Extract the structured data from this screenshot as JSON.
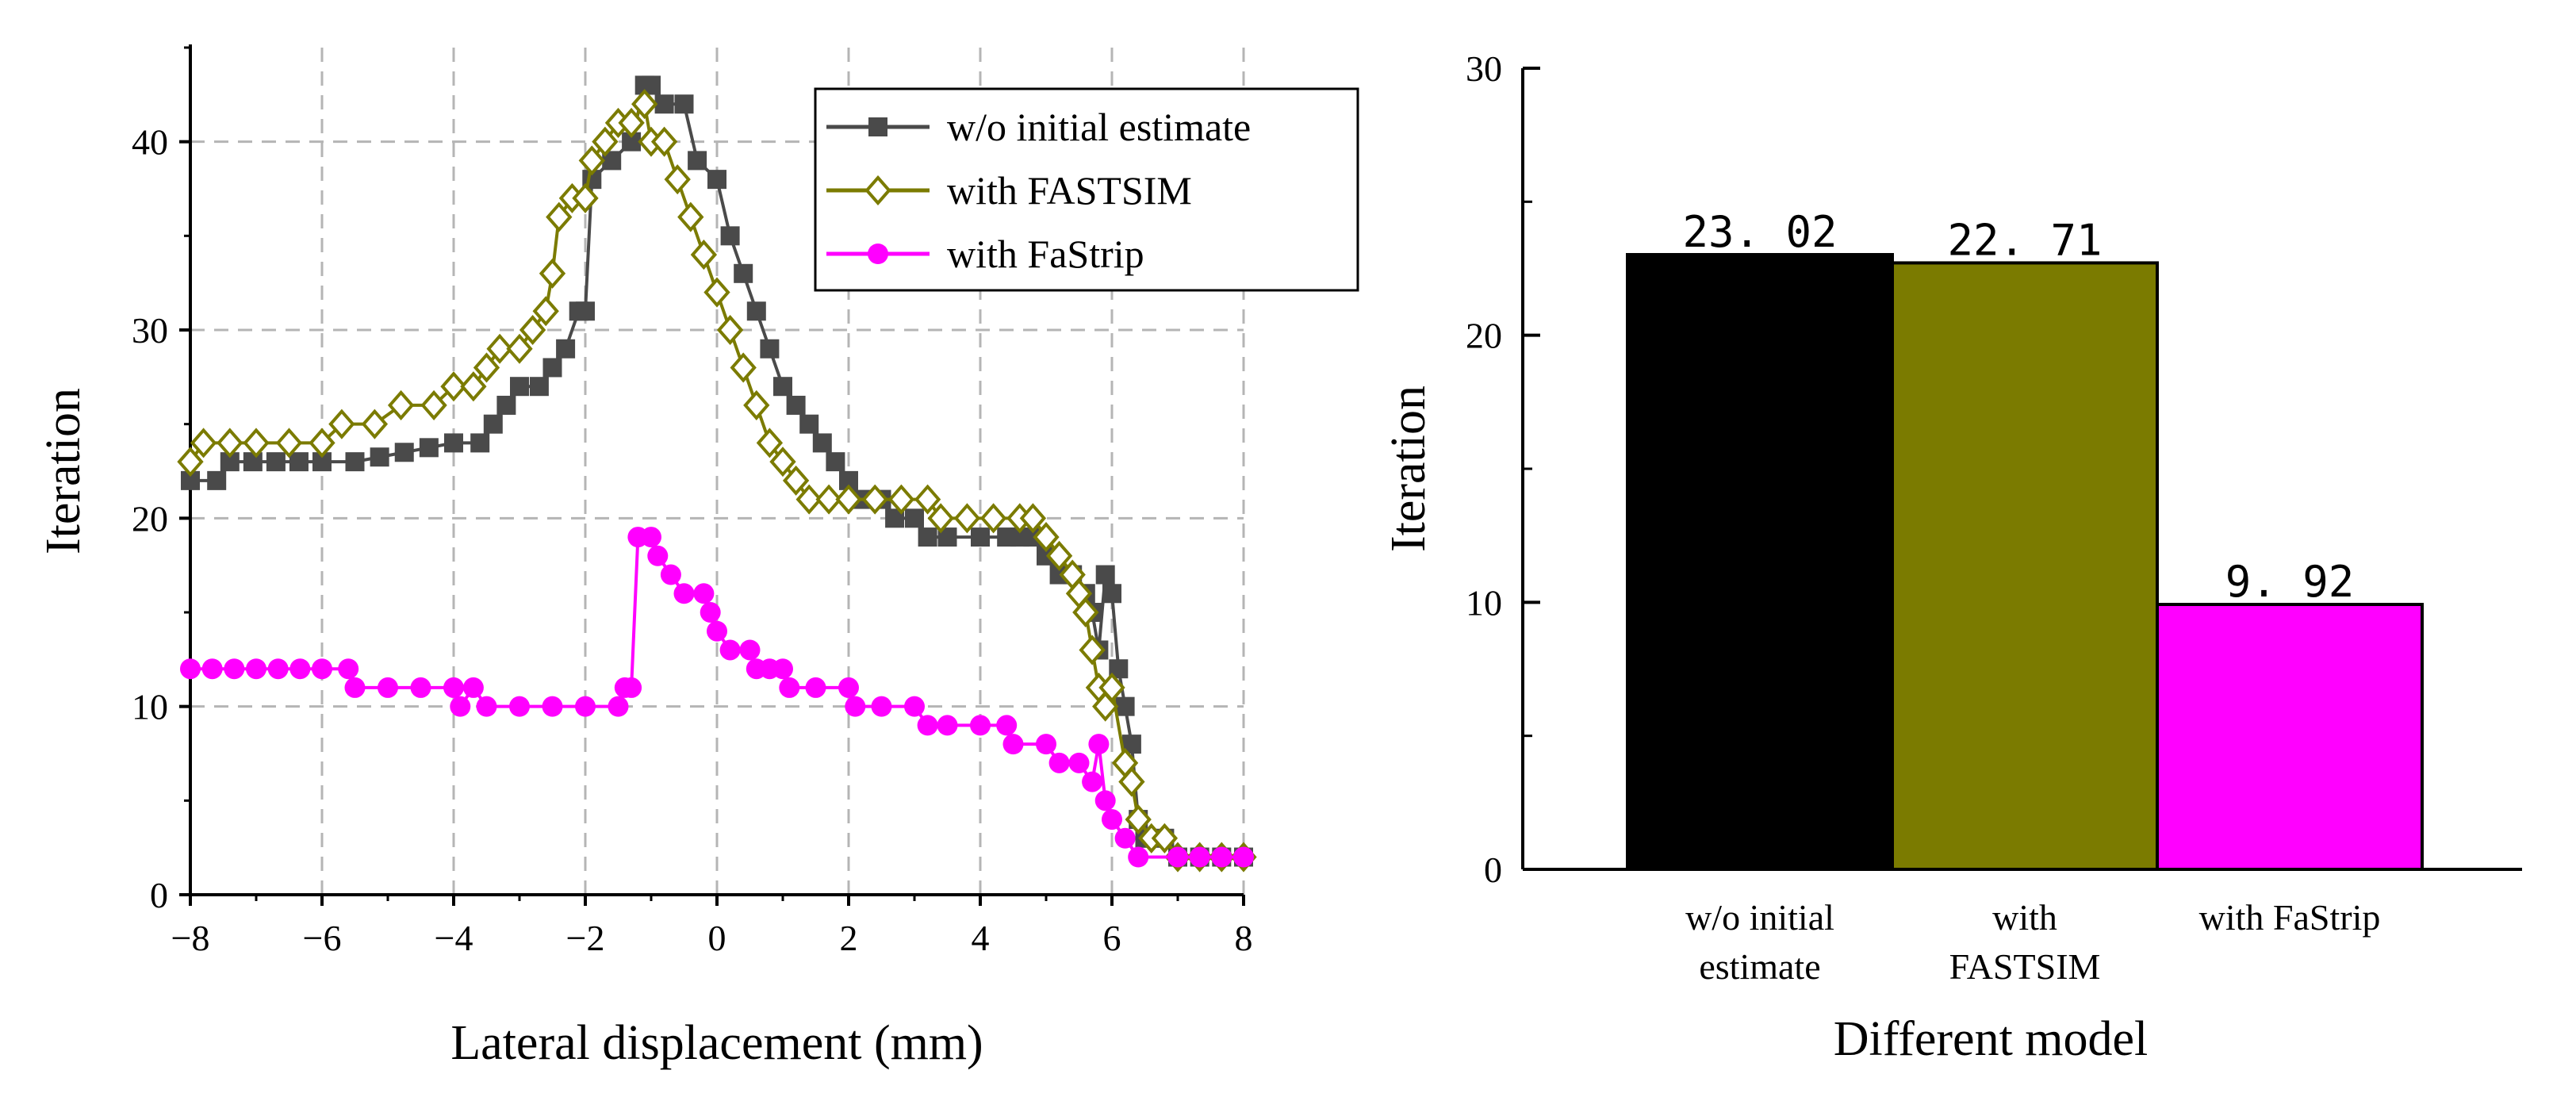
{
  "chart_data": [
    {
      "type": "line",
      "xlabel": "Lateral displacement (mm)",
      "ylabel": "Iteration",
      "xlim": [
        -8,
        8
      ],
      "ylim": [
        0,
        45
      ],
      "xticks": [
        "−8",
        "−6",
        "−4",
        "−2",
        "0",
        "2",
        "4",
        "6",
        "8"
      ],
      "yticks": [
        "0",
        "10",
        "20",
        "30",
        "40"
      ],
      "grid": true,
      "legend_position": "top-right",
      "series": [
        {
          "name": "w/o initial estimate",
          "color": "#4a4a4a",
          "marker": "square",
          "points": [
            [
              -8,
              22
            ],
            [
              -7.6,
              22
            ],
            [
              -7.4,
              23
            ],
            [
              -6,
              23
            ],
            [
              -5.5,
              23
            ],
            [
              -4,
              24
            ],
            [
              -3.6,
              24
            ],
            [
              -3.4,
              25
            ],
            [
              -3.2,
              26
            ],
            [
              -3,
              27
            ],
            [
              -2.7,
              27
            ],
            [
              -2.5,
              28
            ],
            [
              -2.3,
              29
            ],
            [
              -2.1,
              31
            ],
            [
              -2,
              31
            ],
            [
              -1.9,
              38
            ],
            [
              -1.6,
              39
            ],
            [
              -1.3,
              40
            ],
            [
              -1.1,
              43
            ],
            [
              -1,
              43
            ],
            [
              -0.8,
              42
            ],
            [
              -0.5,
              42
            ],
            [
              -0.3,
              39
            ],
            [
              0,
              38
            ],
            [
              0.2,
              35
            ],
            [
              0.4,
              33
            ],
            [
              0.6,
              31
            ],
            [
              0.8,
              29
            ],
            [
              1,
              27
            ],
            [
              1.2,
              26
            ],
            [
              1.4,
              25
            ],
            [
              1.6,
              24
            ],
            [
              1.8,
              23
            ],
            [
              2,
              22
            ],
            [
              2.2,
              21
            ],
            [
              2.5,
              21
            ],
            [
              2.7,
              20
            ],
            [
              3,
              20
            ],
            [
              3.2,
              19
            ],
            [
              3.5,
              19
            ],
            [
              4,
              19
            ],
            [
              4.4,
              19
            ],
            [
              4.6,
              19
            ],
            [
              4.8,
              19
            ],
            [
              5,
              18
            ],
            [
              5.2,
              17
            ],
            [
              5.4,
              17
            ],
            [
              5.6,
              16
            ],
            [
              5.7,
              15
            ],
            [
              5.8,
              13
            ],
            [
              5.9,
              17
            ],
            [
              6,
              16
            ],
            [
              6.1,
              12
            ],
            [
              6.2,
              10
            ],
            [
              6.3,
              8
            ],
            [
              6.4,
              4
            ],
            [
              6.5,
              3
            ],
            [
              6.8,
              3
            ],
            [
              7,
              2
            ],
            [
              8,
              2
            ]
          ]
        },
        {
          "name": "with FASTSIM",
          "color": "#7b7b00",
          "marker": "diamond-open",
          "points": [
            [
              -8,
              23
            ],
            [
              -7.8,
              24
            ],
            [
              -7,
              24
            ],
            [
              -6.5,
              24
            ],
            [
              -6,
              24
            ],
            [
              -5.7,
              25
            ],
            [
              -5.2,
              25
            ],
            [
              -4.8,
              26
            ],
            [
              -4.3,
              26
            ],
            [
              -4,
              27
            ],
            [
              -3.7,
              27
            ],
            [
              -3.5,
              28
            ],
            [
              -3.3,
              29
            ],
            [
              -3,
              29
            ],
            [
              -2.8,
              30
            ],
            [
              -2.6,
              31
            ],
            [
              -2.5,
              33
            ],
            [
              -2.4,
              36
            ],
            [
              -2.2,
              37
            ],
            [
              -2,
              37
            ],
            [
              -1.9,
              39
            ],
            [
              -1.7,
              40
            ],
            [
              -1.5,
              41
            ],
            [
              -1.3,
              41
            ],
            [
              -1.1,
              42
            ],
            [
              -1,
              40
            ],
            [
              -0.8,
              40
            ],
            [
              -0.6,
              38
            ],
            [
              -0.4,
              36
            ],
            [
              -0.2,
              34
            ],
            [
              0,
              32
            ],
            [
              0.2,
              30
            ],
            [
              0.4,
              28
            ],
            [
              0.6,
              26
            ],
            [
              0.8,
              24
            ],
            [
              1,
              23
            ],
            [
              1.2,
              22
            ],
            [
              1.4,
              21
            ],
            [
              1.7,
              21
            ],
            [
              2,
              21
            ],
            [
              2.4,
              21
            ],
            [
              2.8,
              21
            ],
            [
              3.2,
              21
            ],
            [
              3.4,
              20
            ],
            [
              3.8,
              20
            ],
            [
              4.2,
              20
            ],
            [
              4.6,
              20
            ],
            [
              4.8,
              20
            ],
            [
              5,
              19
            ],
            [
              5.2,
              18
            ],
            [
              5.4,
              17
            ],
            [
              5.5,
              16
            ],
            [
              5.6,
              15
            ],
            [
              5.7,
              13
            ],
            [
              5.8,
              11
            ],
            [
              5.9,
              10
            ],
            [
              6,
              11
            ],
            [
              6.2,
              7
            ],
            [
              6.3,
              6
            ],
            [
              6.4,
              4
            ],
            [
              6.6,
              3
            ],
            [
              6.8,
              3
            ],
            [
              7,
              2
            ],
            [
              8,
              2
            ]
          ]
        },
        {
          "name": "with FaStrip",
          "color": "#ff00ff",
          "marker": "circle",
          "points": [
            [
              -8,
              12
            ],
            [
              -7,
              12
            ],
            [
              -6,
              12
            ],
            [
              -5.6,
              12
            ],
            [
              -5.5,
              11
            ],
            [
              -5,
              11
            ],
            [
              -4.5,
              11
            ],
            [
              -4,
              11
            ],
            [
              -3.9,
              10
            ],
            [
              -3.7,
              11
            ],
            [
              -3.5,
              10
            ],
            [
              -3,
              10
            ],
            [
              -2.5,
              10
            ],
            [
              -2,
              10
            ],
            [
              -1.5,
              10
            ],
            [
              -1.4,
              11
            ],
            [
              -1.3,
              11
            ],
            [
              -1.2,
              19
            ],
            [
              -1,
              19
            ],
            [
              -0.9,
              18
            ],
            [
              -0.7,
              17
            ],
            [
              -0.5,
              16
            ],
            [
              -0.2,
              16
            ],
            [
              -0.1,
              15
            ],
            [
              0,
              14
            ],
            [
              0.2,
              13
            ],
            [
              0.5,
              13
            ],
            [
              0.6,
              12
            ],
            [
              0.8,
              12
            ],
            [
              1,
              12
            ],
            [
              1.1,
              11
            ],
            [
              1.5,
              11
            ],
            [
              2,
              11
            ],
            [
              2.1,
              10
            ],
            [
              2.5,
              10
            ],
            [
              3,
              10
            ],
            [
              3.2,
              9
            ],
            [
              3.5,
              9
            ],
            [
              4,
              9
            ],
            [
              4.4,
              9
            ],
            [
              4.5,
              8
            ],
            [
              5,
              8
            ],
            [
              5.2,
              7
            ],
            [
              5.5,
              7
            ],
            [
              5.7,
              6
            ],
            [
              5.8,
              8
            ],
            [
              5.9,
              5
            ],
            [
              6,
              4
            ],
            [
              6.2,
              3
            ],
            [
              6.4,
              2
            ],
            [
              7,
              2
            ],
            [
              8,
              2
            ]
          ]
        }
      ]
    },
    {
      "type": "bar",
      "xlabel": "Different model",
      "ylabel": "Iteration",
      "ylim": [
        0,
        30
      ],
      "yticks": [
        "0",
        "10",
        "20",
        "30"
      ],
      "categories": [
        [
          "w/o initial",
          "estimate"
        ],
        [
          "with",
          "FASTSIM"
        ],
        [
          "with FaStrip"
        ]
      ],
      "values": [
        23.02,
        22.71,
        9.92
      ],
      "value_labels": [
        "23. 02",
        "22. 71",
        "9. 92"
      ],
      "colors": [
        "#000000",
        "#7b7b00",
        "#ff00ff"
      ]
    }
  ]
}
